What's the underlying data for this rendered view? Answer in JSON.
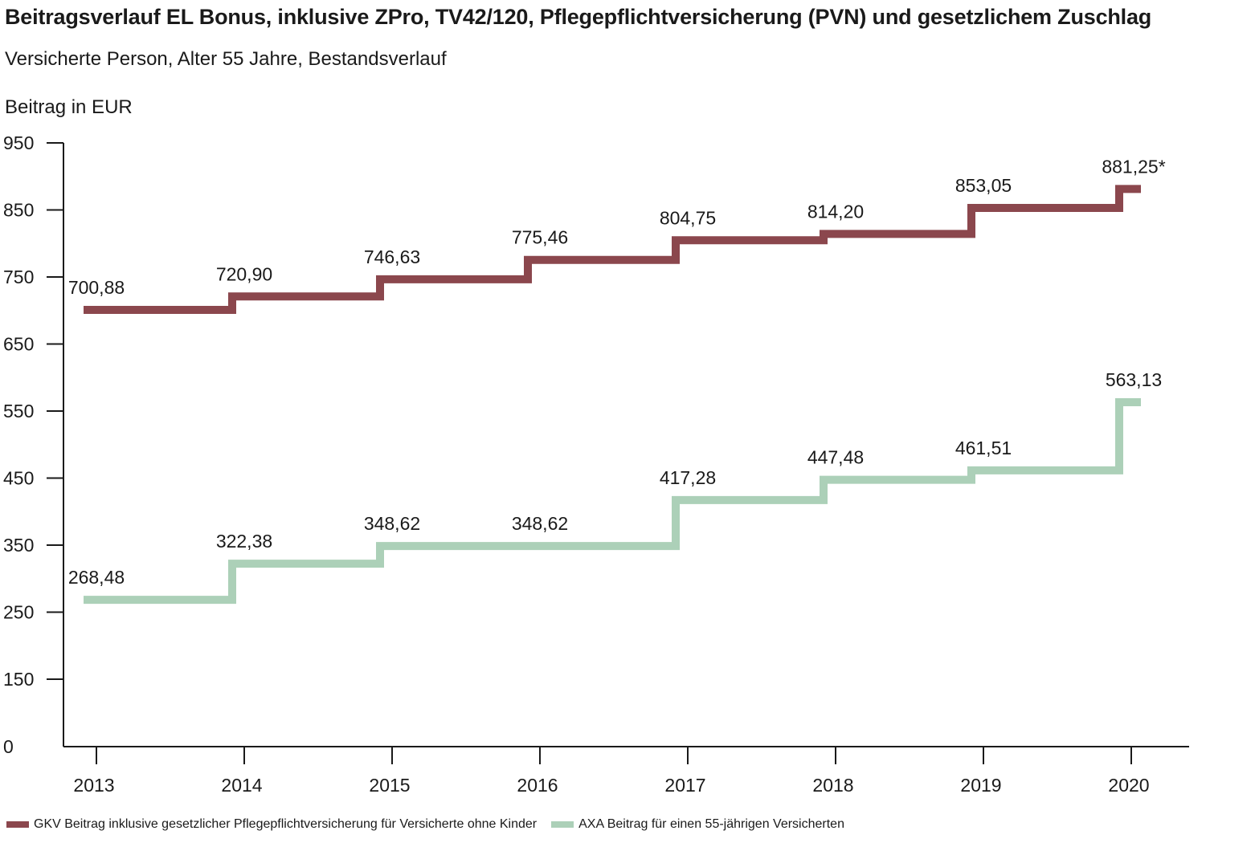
{
  "chart_data": {
    "type": "line",
    "title": "Beitragsverlauf EL Bonus, inklusive ZPro, TV42/120, Pflegepflichtversicherung (PVN) und gesetzlichem Zuschlag",
    "subtitle": "Versicherte Person, Alter 55 Jahre, Bestandsverlauf",
    "ylabel": "Beitrag in EUR",
    "xlabel": "",
    "step": true,
    "ylim": [
      0,
      950
    ],
    "yticks": [
      "0",
      "150",
      "250",
      "350",
      "450",
      "550",
      "650",
      "750",
      "850",
      "950"
    ],
    "categories": [
      "2013",
      "2014",
      "2015",
      "2016",
      "2017",
      "2018",
      "2019",
      "2020"
    ],
    "grid": false,
    "legend_position": "bottom-left",
    "series": [
      {
        "name": "GKV Beitrag inklusive gesetzlicher Pflegepflichtversicherung für Versicherte ohne Kinder",
        "color": "#8b474d",
        "values": [
          700.88,
          720.9,
          746.63,
          775.46,
          804.75,
          814.2,
          853.05,
          881.25
        ],
        "labels": [
          "700,88",
          "720,90",
          "746,63",
          "775,46",
          "804,75",
          "814,20",
          "853,05",
          "881,25*"
        ]
      },
      {
        "name": "AXA Beitrag für einen 55-jährigen Versicherten",
        "color": "#acd0b8",
        "values": [
          268.48,
          322.38,
          348.62,
          348.62,
          417.28,
          447.48,
          461.51,
          563.13
        ],
        "labels": [
          "268,48",
          "322,38",
          "348,62",
          "348,62",
          "417,28",
          "447,48",
          "461,51",
          "563,13"
        ]
      }
    ]
  }
}
